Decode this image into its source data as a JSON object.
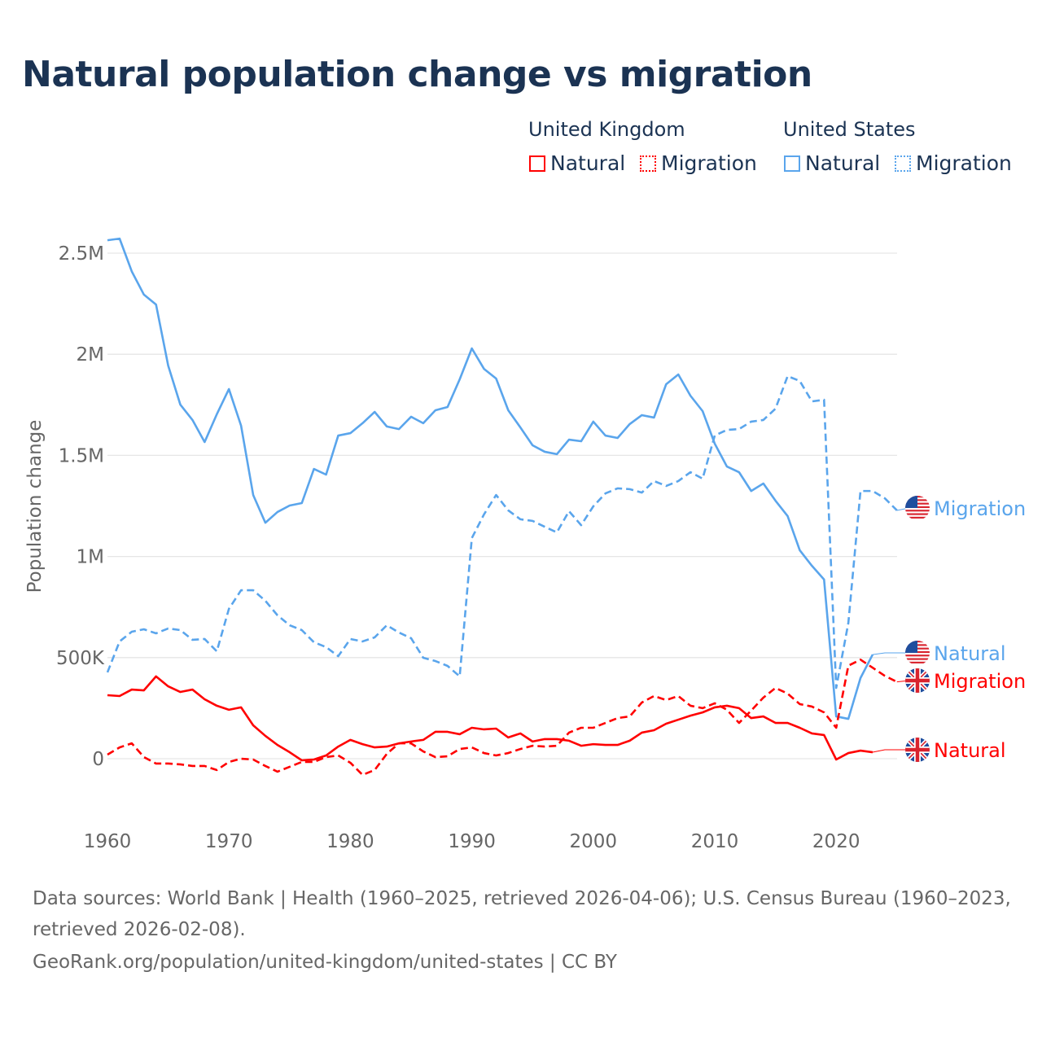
{
  "title": "Natural population change vs migration",
  "legend": {
    "groups": [
      {
        "name": "United Kingdom",
        "items": [
          "Natural",
          "Migration"
        ],
        "color": "#ff0000"
      },
      {
        "name": "United States",
        "items": [
          "Natural",
          "Migration"
        ],
        "color": "#5aa5ec"
      }
    ]
  },
  "footer": {
    "line1": "Data sources: World Bank | Health (1960–2025, retrieved 2026-04-06); U.S. Census Bureau (1960–2023,",
    "line2": "retrieved 2026-02-08).",
    "line3": "GeoRank.org/population/united-kingdom/united-states | CC BY"
  },
  "chart_data": {
    "type": "line",
    "title": "Natural population change vs migration",
    "xlabel": "",
    "ylabel": "Population change",
    "xlim": [
      1960,
      2025
    ],
    "ylim": [
      -0.2,
      2.6
    ],
    "x_ticks": [
      1960,
      1970,
      1980,
      1990,
      2000,
      2010,
      2020
    ],
    "x_tick_labels": [
      "1960",
      "1970",
      "1980",
      "1990",
      "2000",
      "2010",
      "2020"
    ],
    "y_ticks": [
      0,
      0.5,
      1,
      1.5,
      2,
      2.5
    ],
    "y_tick_labels": [
      "0",
      "500K",
      "1M",
      "1.5M",
      "2M",
      "2.5M"
    ],
    "y_units": "millions",
    "grid": true,
    "legend_position": "top-right",
    "series": [
      {
        "name": "United States Natural",
        "end_label": "Natural",
        "country": "us",
        "color": "#5aa5ec",
        "dash": false,
        "start_year": 1960,
        "values": [
          2.564,
          2.572,
          2.41,
          2.295,
          2.246,
          1.944,
          1.751,
          1.675,
          1.566,
          1.703,
          1.828,
          1.647,
          1.304,
          1.167,
          1.22,
          1.252,
          1.264,
          1.433,
          1.405,
          1.598,
          1.61,
          1.659,
          1.715,
          1.643,
          1.63,
          1.691,
          1.659,
          1.723,
          1.739,
          1.876,
          2.029,
          1.928,
          1.88,
          1.723,
          1.638,
          1.55,
          1.518,
          1.506,
          1.578,
          1.57,
          1.667,
          1.598,
          1.586,
          1.655,
          1.699,
          1.687,
          1.852,
          1.9,
          1.795,
          1.719,
          1.558,
          1.445,
          1.417,
          1.324,
          1.361,
          1.276,
          1.2,
          1.031,
          0.954,
          0.886,
          0.209,
          0.197,
          0.399,
          0.515
        ]
      },
      {
        "name": "United States Migration",
        "end_label": "Migration",
        "country": "us",
        "color": "#5aa5ec",
        "dash": true,
        "start_year": 1960,
        "values": [
          0.427,
          0.58,
          0.628,
          0.64,
          0.62,
          0.644,
          0.636,
          0.588,
          0.592,
          0.531,
          0.741,
          0.833,
          0.833,
          0.781,
          0.709,
          0.66,
          0.636,
          0.576,
          0.552,
          0.507,
          0.592,
          0.58,
          0.6,
          0.66,
          0.624,
          0.596,
          0.499,
          0.483,
          0.459,
          0.407,
          1.091,
          1.208,
          1.304,
          1.228,
          1.184,
          1.176,
          1.147,
          1.119,
          1.224,
          1.155,
          1.248,
          1.312,
          1.337,
          1.333,
          1.316,
          1.373,
          1.349,
          1.373,
          1.417,
          1.385,
          1.598,
          1.626,
          1.63,
          1.667,
          1.675,
          1.731,
          1.892,
          1.868,
          1.767,
          1.775,
          0.35,
          0.672,
          1.324,
          1.324,
          1.288,
          1.228
        ]
      },
      {
        "name": "United Kingdom Natural",
        "end_label": "Natural",
        "country": "uk",
        "color": "#ff0000",
        "dash": false,
        "start_year": 1960,
        "values": [
          0.314,
          0.31,
          0.342,
          0.338,
          0.407,
          0.358,
          0.33,
          0.342,
          0.294,
          0.262,
          0.242,
          0.254,
          0.165,
          0.113,
          0.068,
          0.032,
          -0.008,
          -0.004,
          0.016,
          0.06,
          0.093,
          0.072,
          0.056,
          0.06,
          0.076,
          0.085,
          0.093,
          0.133,
          0.133,
          0.121,
          0.153,
          0.145,
          0.149,
          0.105,
          0.125,
          0.085,
          0.097,
          0.097,
          0.089,
          0.064,
          0.072,
          0.068,
          0.068,
          0.089,
          0.129,
          0.141,
          0.173,
          0.193,
          0.213,
          0.229,
          0.254,
          0.262,
          0.25,
          0.201,
          0.209,
          0.177,
          0.177,
          0.153,
          0.125,
          0.117,
          -0.004,
          0.028,
          0.04,
          0.032
        ]
      },
      {
        "name": "United Kingdom Migration",
        "end_label": "Migration",
        "country": "uk",
        "color": "#ff0000",
        "dash": true,
        "start_year": 1960,
        "values": [
          0.02,
          0.056,
          0.076,
          0.008,
          -0.024,
          -0.024,
          -0.028,
          -0.036,
          -0.036,
          -0.056,
          -0.016,
          0,
          -0.004,
          -0.036,
          -0.064,
          -0.04,
          -0.016,
          -0.016,
          0.008,
          0.016,
          -0.02,
          -0.08,
          -0.056,
          0.024,
          0.076,
          0.076,
          0.036,
          0.008,
          0.012,
          0.048,
          0.056,
          0.028,
          0.016,
          0.028,
          0.048,
          0.064,
          0.06,
          0.064,
          0.129,
          0.153,
          0.153,
          0.177,
          0.201,
          0.209,
          0.278,
          0.31,
          0.29,
          0.31,
          0.262,
          0.25,
          0.274,
          0.242,
          0.177,
          0.238,
          0.302,
          0.35,
          0.322,
          0.27,
          0.258,
          0.229,
          0.153,
          0.46,
          0.49,
          0.45,
          0.41,
          0.38
        ]
      }
    ]
  }
}
